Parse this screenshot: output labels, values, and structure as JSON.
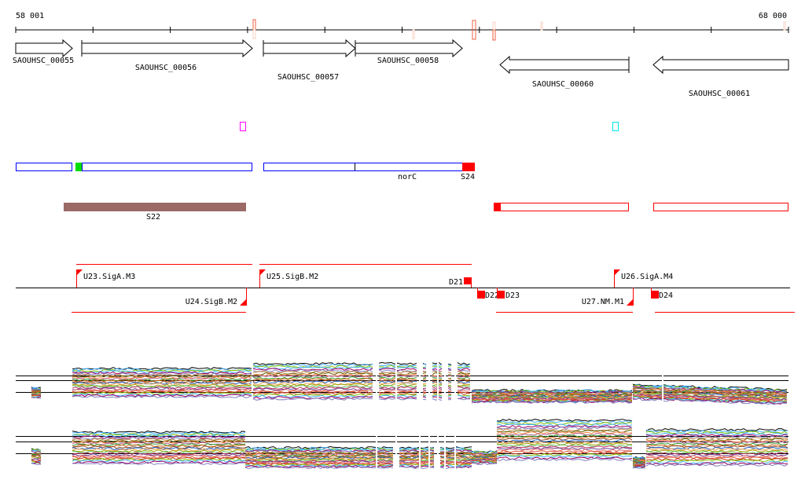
{
  "ruler": {
    "start_label": "58 001",
    "end_label": "68 000"
  },
  "genes": [
    {
      "id": "SAOUHSC_00055",
      "strand": "+"
    },
    {
      "id": "SAOUHSC_00056",
      "strand": "+"
    },
    {
      "id": "SAOUHSC_00057",
      "strand": "+"
    },
    {
      "id": "SAOUHSC_00058",
      "strand": "+"
    },
    {
      "id": "SAOUHSC_00060",
      "strand": "-"
    },
    {
      "id": "SAOUHSC_00061",
      "strand": "-"
    }
  ],
  "annotation_track": {
    "labels": [
      "norC",
      "S24"
    ]
  },
  "segment_track": {
    "labels": [
      "S22"
    ]
  },
  "promoters": {
    "forward": [
      "U23.SigA.M3",
      "U25.SigB.M2",
      "U26.SigA.M4"
    ],
    "reverse": [
      "U24.SigB.M2",
      "U27.NM.M1"
    ],
    "terminators": [
      "D21",
      "D22",
      "D23",
      "D24"
    ]
  },
  "colors": {
    "gene_outline": "#000000",
    "blue_track": "#0000ff",
    "red": "#ff0000",
    "brown": "#9b6a66",
    "green": "#00dd00",
    "magenta": "#ff00ff",
    "cyan": "#00e5e5"
  }
}
